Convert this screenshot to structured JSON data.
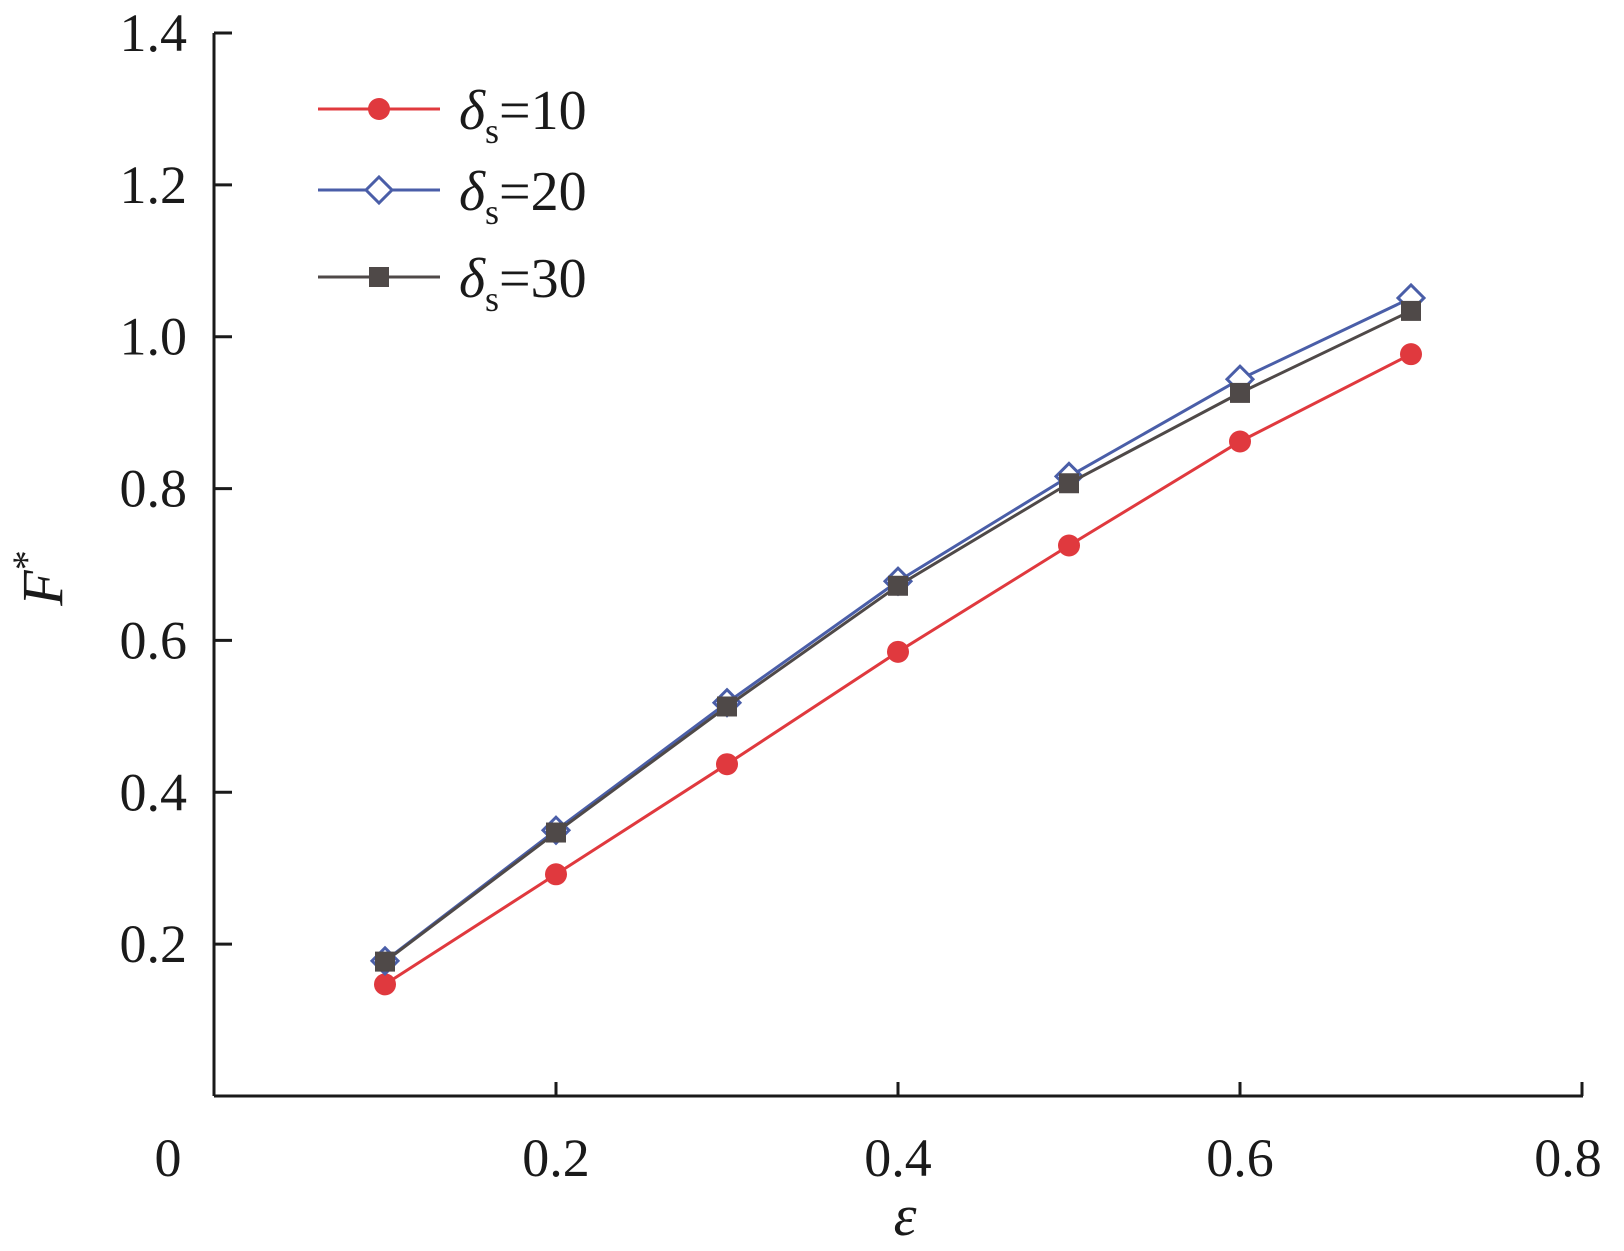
{
  "chart_data": {
    "type": "line",
    "xlabel": "ε",
    "ylabel": "F",
    "ylabel_superscript": "*",
    "xlim": [
      0,
      0.8
    ],
    "ylim": [
      0,
      1.4
    ],
    "x_ticks": [
      0,
      0.2,
      0.4,
      0.6,
      0.8
    ],
    "x_tick_labels": [
      "0",
      "0.2",
      "0.4",
      "0.6",
      "0.8"
    ],
    "y_ticks": [
      0.2,
      0.4,
      0.6,
      0.8,
      1.0,
      1.2,
      1.4
    ],
    "y_tick_labels": [
      "0.2",
      "0.4",
      "0.6",
      "0.8",
      "1.0",
      "1.2",
      "1.4"
    ],
    "grid": false,
    "legend_position": "top-left",
    "x": [
      0.1,
      0.2,
      0.3,
      0.4,
      0.5,
      0.6,
      0.7
    ],
    "series": [
      {
        "symbol": "δ",
        "subscript": "s",
        "suffix": "=10",
        "color": "#e0393e",
        "marker": "circle",
        "values": [
          0.147,
          0.292,
          0.437,
          0.585,
          0.725,
          0.862,
          0.977
        ]
      },
      {
        "symbol": "δ",
        "subscript": "s",
        "suffix": "=20",
        "color": "#4a5ea8",
        "marker": "diamond-open",
        "values": [
          0.178,
          0.35,
          0.518,
          0.678,
          0.816,
          0.944,
          1.051
        ]
      },
      {
        "symbol": "δ",
        "subscript": "s",
        "suffix": "=30",
        "color": "#4f4948",
        "marker": "square",
        "values": [
          0.177,
          0.347,
          0.513,
          0.672,
          0.807,
          0.926,
          1.034
        ]
      }
    ]
  }
}
